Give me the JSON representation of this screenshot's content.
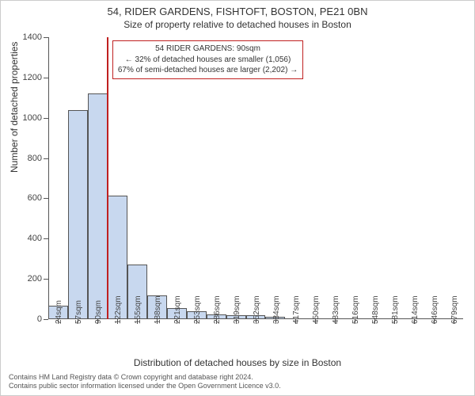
{
  "header": {
    "line1": "54, RIDER GARDENS, FISHTOFT, BOSTON, PE21 0BN",
    "line2": "Size of property relative to detached houses in Boston"
  },
  "chart": {
    "type": "histogram",
    "y_axis": {
      "label": "Number of detached properties",
      "ylim": [
        0,
        1400
      ],
      "tick_step": 200,
      "ticks": [
        0,
        200,
        400,
        600,
        800,
        1000,
        1200,
        1400
      ],
      "label_fontsize": 12,
      "tick_fontsize": 11
    },
    "x_axis": {
      "label": "Distribution of detached houses by size in Boston",
      "categories": [
        "24sqm",
        "57sqm",
        "90sqm",
        "122sqm",
        "155sqm",
        "188sqm",
        "221sqm",
        "253sqm",
        "286sqm",
        "319sqm",
        "352sqm",
        "384sqm",
        "417sqm",
        "450sqm",
        "483sqm",
        "516sqm",
        "548sqm",
        "581sqm",
        "614sqm",
        "646sqm",
        "679sqm"
      ],
      "label_fontsize": 12,
      "tick_fontsize": 10,
      "tick_rotation_deg": -90
    },
    "bars": {
      "values": [
        65,
        1040,
        1120,
        615,
        270,
        120,
        55,
        40,
        25,
        20,
        18,
        12,
        0,
        0,
        0,
        0,
        0,
        0,
        0,
        0,
        0
      ],
      "fill_color": "#c8d8ef",
      "border_color": "#555555",
      "bar_width_ratio": 1.0
    },
    "highlight": {
      "category_index": 2,
      "line_color": "#c02020",
      "line_width": 2,
      "height_ratio": 1.0
    },
    "annotation": {
      "line1": "54 RIDER GARDENS: 90sqm",
      "line2": "← 32% of detached houses are smaller (1,056)",
      "line3": "67% of semi-detached houses are larger (2,202) →",
      "border_color": "#c02020",
      "background_color": "#ffffff",
      "fontsize": 10
    },
    "background_color": "#ffffff",
    "axis_color": "#555555"
  },
  "footer": {
    "line1": "Contains HM Land Registry data © Crown copyright and database right 2024.",
    "line2": "Contains public sector information licensed under the Open Government Licence v3.0."
  }
}
